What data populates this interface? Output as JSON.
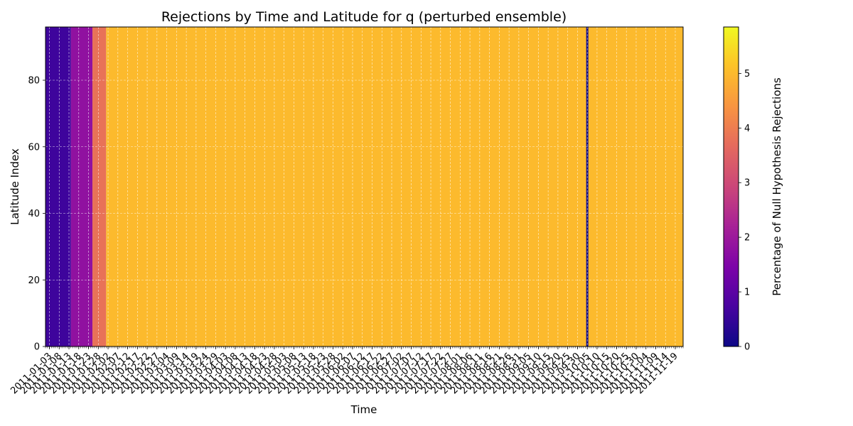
{
  "chart_data": {
    "type": "heatmap",
    "title": "Rejections by Time and Latitude for q (perturbed ensemble)",
    "xlabel": "Time",
    "ylabel": "Latitude Index",
    "colorbar_label": "Percentage of Null Hypothesis Rejections",
    "colormap": "plasma",
    "x_start_date": "2011-01-01",
    "x_end_date": "2011-11-23",
    "ylim": [
      0,
      96
    ],
    "clim": [
      0,
      5.85
    ],
    "y_ticks": [
      0,
      20,
      40,
      60,
      80
    ],
    "colorbar_ticks": [
      0,
      1,
      2,
      3,
      4,
      5
    ],
    "x_tick_labels": [
      "2011-01-03",
      "2011-01-08",
      "2011-01-13",
      "2011-01-18",
      "2011-01-23",
      "2011-01-28",
      "2011-02-02",
      "2011-02-07",
      "2011-02-12",
      "2011-02-17",
      "2011-02-22",
      "2011-02-27",
      "2011-03-04",
      "2011-03-09",
      "2011-03-14",
      "2011-03-19",
      "2011-03-24",
      "2011-03-29",
      "2011-04-03",
      "2011-04-08",
      "2011-04-13",
      "2011-04-18",
      "2011-04-23",
      "2011-04-28",
      "2011-05-03",
      "2011-05-08",
      "2011-05-13",
      "2011-05-18",
      "2011-05-23",
      "2011-05-28",
      "2011-06-02",
      "2011-06-07",
      "2011-06-12",
      "2011-06-17",
      "2011-06-22",
      "2011-06-27",
      "2011-07-02",
      "2011-07-07",
      "2011-07-12",
      "2011-07-17",
      "2011-07-22",
      "2011-07-27",
      "2011-08-01",
      "2011-08-06",
      "2011-08-11",
      "2011-08-16",
      "2011-08-21",
      "2011-08-26",
      "2011-08-31",
      "2011-09-05",
      "2011-09-10",
      "2011-09-15",
      "2011-09-20",
      "2011-09-25",
      "2011-09-30",
      "2011-10-05",
      "2011-10-10",
      "2011-10-15",
      "2011-10-20",
      "2011-10-25",
      "2011-10-30",
      "2011-11-04",
      "2011-11-09",
      "2011-11-14",
      "2011-11-19"
    ],
    "regions": [
      {
        "date_from": "2011-01-01",
        "date_to": "2011-01-14",
        "lat_from": 0,
        "lat_to": 96,
        "value": 0.6
      },
      {
        "date_from": "2011-01-14",
        "date_to": "2011-01-25",
        "lat_from": 0,
        "lat_to": 96,
        "value": 1.8
      },
      {
        "date_from": "2011-01-25",
        "date_to": "2011-02-01",
        "lat_from": 0,
        "lat_to": 96,
        "value": 3.8
      },
      {
        "date_from": "2011-02-01",
        "date_to": "2011-11-23",
        "lat_from": 0,
        "lat_to": 96,
        "value": 5.0
      }
    ],
    "zero_column_date": "2011-10-05",
    "grid": true
  }
}
